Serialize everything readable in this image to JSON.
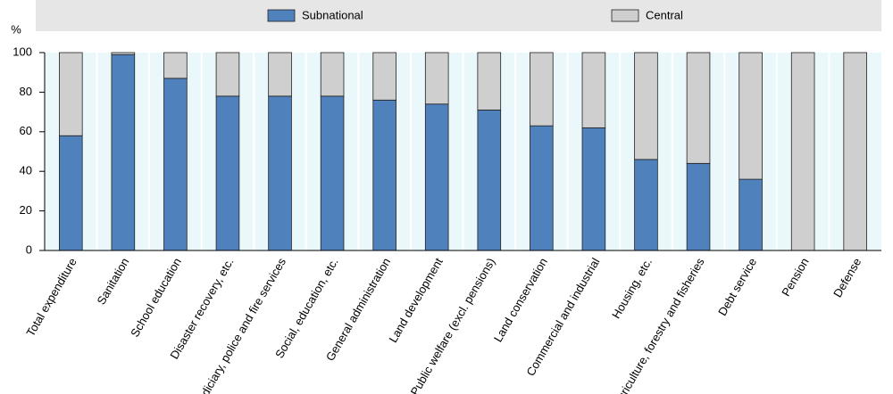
{
  "chart_data": {
    "type": "stacked_bar",
    "y_label": "%",
    "categories": [
      "Total expenditure",
      "Sanitation",
      "School education",
      "Disaster recovery, etc.",
      "Judiciary, police and fire services",
      "Social, education, etc.",
      "General administration",
      "Land development",
      "Public welfare (excl. pensions)",
      "Land conservation",
      "Commercial and industrial",
      "Housing, etc.",
      "Agriculture, forestry and fisheries",
      "Debt service",
      "Pension",
      "Defense"
    ],
    "series": [
      {
        "name": "Subnational",
        "color": "#4f81bd",
        "values": [
          58,
          99,
          87,
          78,
          78,
          78,
          76,
          74,
          71,
          63,
          62,
          46,
          44,
          36,
          0,
          0
        ]
      },
      {
        "name": "Central",
        "color": "#cfcfcf",
        "values": [
          42,
          1,
          13,
          22,
          22,
          22,
          24,
          26,
          29,
          37,
          38,
          54,
          56,
          64,
          100,
          100
        ]
      }
    ],
    "ylim": [
      0,
      100
    ],
    "yticks": [
      0,
      20,
      40,
      60,
      80,
      100
    ],
    "grid": false
  }
}
